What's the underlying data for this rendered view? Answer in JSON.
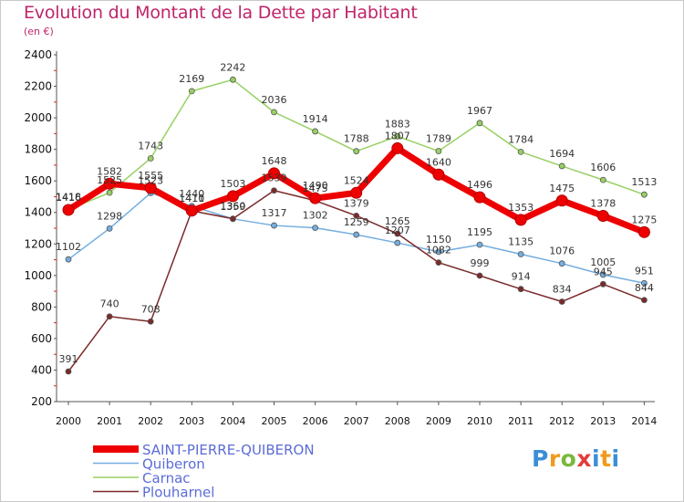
{
  "page": {
    "title": "Evolution du Montant de la Dette par Habitant",
    "subtitle": "(en €)",
    "logo": "Proxiti"
  },
  "chart_data": {
    "type": "line",
    "title": "Evolution du Montant de la Dette par Habitant",
    "subtitle": "(en €)",
    "xlabel": "",
    "ylabel": "",
    "x": [
      "2000",
      "2001",
      "2002",
      "2003",
      "2004",
      "2005",
      "2006",
      "2007",
      "2008",
      "2009",
      "2010",
      "2011",
      "2012",
      "2013",
      "2014"
    ],
    "ylim": [
      200,
      2400
    ],
    "yticks": [
      "200",
      "400",
      "600",
      "800",
      "1000",
      "1200",
      "1400",
      "1600",
      "1800",
      "2000",
      "2200",
      "2400"
    ],
    "grid": false,
    "legend_placement": "bottom-left",
    "series": [
      {
        "name": "SAINT-PIERRE-QUIBERON",
        "color": "#ee0000",
        "width": 7,
        "values": [
          1416,
          1582,
          1555,
          1411,
          1503,
          1648,
          1490,
          1524,
          1807,
          1640,
          1496,
          1353,
          1475,
          1378,
          1275
        ]
      },
      {
        "name": "Quiberon",
        "color": "#74aedf",
        "width": 1.5,
        "values": [
          1102,
          1298,
          1523,
          1440,
          1359,
          1317,
          1302,
          1259,
          1207,
          1150,
          1195,
          1135,
          1076,
          1005,
          951
        ]
      },
      {
        "name": "Carnac",
        "color": "#98d063",
        "width": 1.5,
        "values": [
          1418,
          1525,
          1743,
          2169,
          2242,
          2036,
          1914,
          1788,
          1883,
          1789,
          1967,
          1784,
          1694,
          1606,
          1513
        ]
      },
      {
        "name": "Plouharnel",
        "color": "#7b2a2a",
        "width": 1.5,
        "values": [
          391,
          740,
          708,
          1410,
          1360,
          1539,
          1475,
          1379,
          1265,
          1082,
          999,
          914,
          834,
          945,
          844
        ]
      }
    ]
  }
}
